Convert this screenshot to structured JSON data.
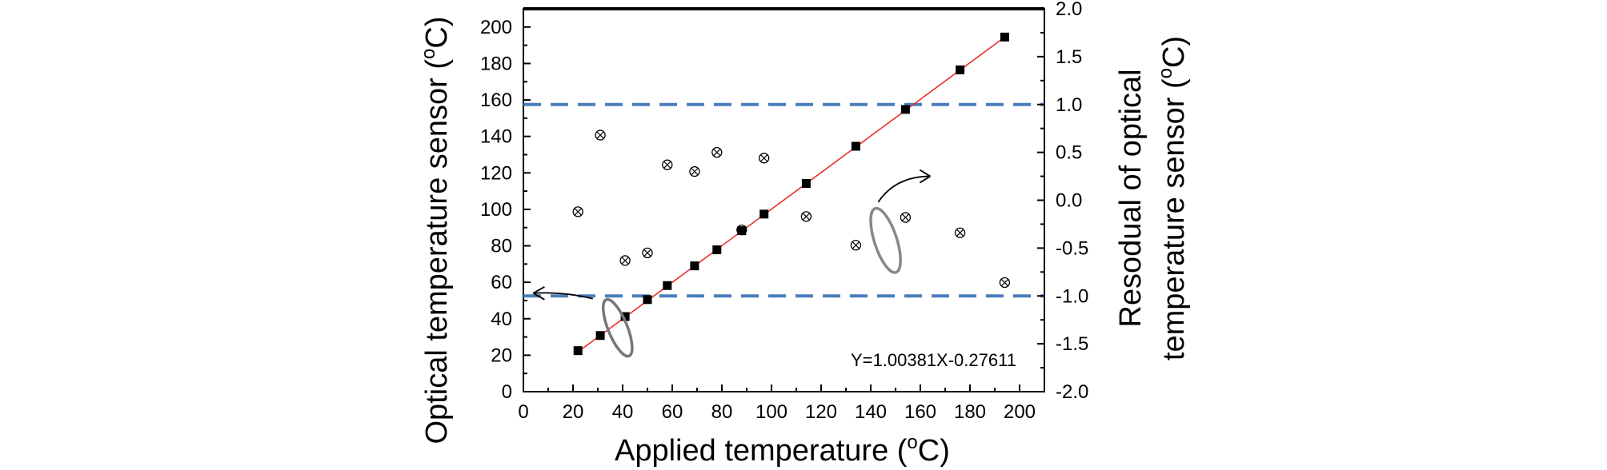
{
  "chart_data": {
    "type": "scatter",
    "xlabel": "Applied temperature (",
    "xlabel_sup": "o",
    "xlabel_end": "C)",
    "ylabel": "Optical temperature sensor (",
    "ylabel_sup": "o",
    "ylabel_end": "C)",
    "y2label_line1": "Resodual of optical",
    "y2label_line2": "temperature sensor (",
    "y2label_sup": "o",
    "y2label_end": "C)",
    "equation": "Y=1.00381X-0.27611",
    "xlim": [
      0,
      210
    ],
    "ylim": [
      0,
      210
    ],
    "y2lim": [
      -2.0,
      2.0
    ],
    "x_ticks": [
      "0",
      "20",
      "40",
      "60",
      "80",
      "100",
      "120",
      "140",
      "160",
      "180",
      "200"
    ],
    "y_ticks": [
      "0",
      "20",
      "40",
      "60",
      "80",
      "100",
      "120",
      "140",
      "160",
      "180",
      "200"
    ],
    "y2_ticks": [
      "-2.0",
      "-1.5",
      "-1.0",
      "-0.5",
      "0.0",
      "0.5",
      "1.0",
      "1.5",
      "2.0"
    ],
    "fit_line": {
      "slope": 1.00381,
      "intercept": -0.27611,
      "x_range": [
        22,
        195
      ],
      "color": "#e8302a"
    },
    "reference_lines_y2": [
      1.0,
      -1.0
    ],
    "reference_line_color": "#4a7ebb",
    "series": [
      {
        "axis": "left",
        "marker": "filled-square",
        "points": [
          [
            22,
            22.5
          ],
          [
            31,
            30.8
          ],
          [
            41,
            41.2
          ],
          [
            50,
            50.5
          ],
          [
            58,
            58.2
          ],
          [
            69,
            69.0
          ],
          [
            78,
            77.8
          ],
          [
            88,
            88.3
          ],
          [
            97,
            97.4
          ],
          [
            114,
            114.2
          ],
          [
            134,
            134.6
          ],
          [
            154,
            154.8
          ],
          [
            176,
            176.5
          ],
          [
            194,
            194.5
          ]
        ]
      },
      {
        "axis": "right",
        "marker": "circle-x",
        "points": [
          [
            22,
            -0.12
          ],
          [
            31,
            0.68
          ],
          [
            41,
            -0.63
          ],
          [
            50,
            -0.55
          ],
          [
            58,
            0.37
          ],
          [
            69,
            0.3
          ],
          [
            78,
            0.5
          ],
          [
            88,
            -0.31
          ],
          [
            97,
            0.44
          ],
          [
            114,
            -0.17
          ],
          [
            134,
            -0.47
          ],
          [
            154,
            -0.18
          ],
          [
            176,
            -0.34
          ],
          [
            194,
            -0.86
          ]
        ]
      }
    ]
  }
}
